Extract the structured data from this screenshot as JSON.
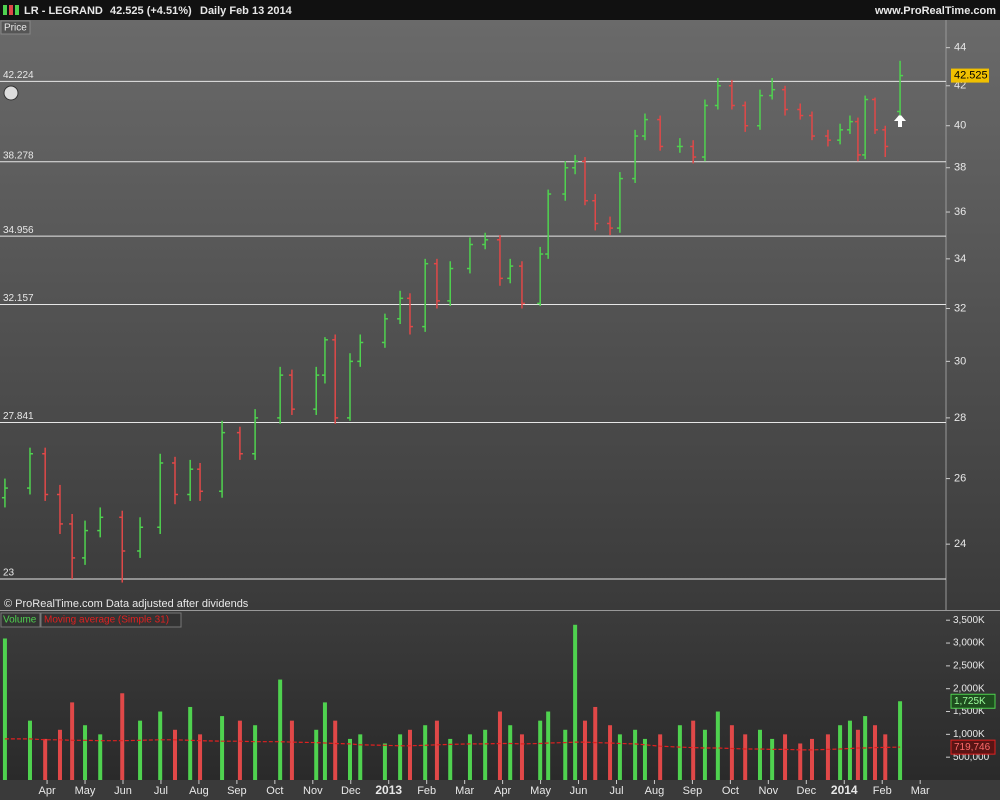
{
  "header": {
    "symbol": "LR - LEGRAND",
    "quote": "42.525 (+4.51%)",
    "period": "Daily  Feb 13 2014",
    "site": "www.ProRealTime.com"
  },
  "chart_data": [
    {
      "type": "ohlc",
      "title": "Price",
      "annotation": "© ProRealTime.com  Data adjusted after dividends",
      "log_scale": true,
      "up_color": "#4fd24f",
      "down_color": "#e04848",
      "x": [
        -1.11,
        -0.45,
        -0.05,
        0.34,
        0.66,
        1.0,
        1.4,
        1.98,
        2.45,
        2.98,
        3.37,
        3.77,
        4.03,
        4.61,
        5.08,
        5.48,
        6.14,
        6.45,
        7.09,
        7.32,
        7.59,
        7.98,
        8.25,
        8.9,
        9.3,
        9.56,
        9.96,
        10.27,
        10.62,
        11.14,
        11.54,
        11.93,
        12.2,
        12.51,
        12.99,
        13.2,
        13.65,
        13.91,
        14.17,
        14.44,
        14.83,
        15.09,
        15.49,
        15.75,
        16.15,
        16.67,
        17.02,
        17.33,
        17.67,
        18.04,
        18.39,
        18.78,
        19.1,
        19.44,
        19.84,
        20.15,
        20.57,
        20.89,
        21.15,
        21.36,
        21.55,
        21.81,
        22.08,
        22.47
      ],
      "open": [
        25.4,
        25.7,
        26.8,
        25.5,
        24.6,
        23.6,
        24.4,
        24.8,
        23.8,
        24.5,
        26.5,
        25.5,
        26.3,
        25.6,
        27.5,
        26.8,
        28,
        29.5,
        28.3,
        29.5,
        30.8,
        28,
        30,
        30.7,
        31.6,
        32.4,
        31.3,
        33.8,
        32.3,
        33.6,
        34.6,
        34.8,
        33.2,
        33.7,
        32.2,
        34.2,
        36.8,
        38,
        38.3,
        36.5,
        35.5,
        35.3,
        37.5,
        39.5,
        40.3,
        39,
        39,
        38.5,
        41,
        42,
        41,
        40,
        41.5,
        41.8,
        40.8,
        40.5,
        39.5,
        39.3,
        39.8,
        40.2,
        38.6,
        41.3,
        39.8,
        40.7
      ],
      "high": [
        26.0,
        27.0,
        27.0,
        25.8,
        24.9,
        24.7,
        25.1,
        25.0,
        24.8,
        26.8,
        26.7,
        26.6,
        26.5,
        27.9,
        27.7,
        28.3,
        29.8,
        29.7,
        29.8,
        30.9,
        31.0,
        30.3,
        31.0,
        31.8,
        32.7,
        32.6,
        34.0,
        34.0,
        33.9,
        34.9,
        35.1,
        35.0,
        34.0,
        33.9,
        34.5,
        37.0,
        38.3,
        38.6,
        38.5,
        36.8,
        35.8,
        37.8,
        39.8,
        40.6,
        40.5,
        39.4,
        39.3,
        41.3,
        42.4,
        42.3,
        41.2,
        41.8,
        42.4,
        42.0,
        41.1,
        40.7,
        39.8,
        40.1,
        40.5,
        40.4,
        41.5,
        41.4,
        40.0,
        43.3
      ],
      "low": [
        25.1,
        25.5,
        25.3,
        24.3,
        23.0,
        23.4,
        24.2,
        22.9,
        23.6,
        24.3,
        25.2,
        25.3,
        25.3,
        25.4,
        26.6,
        26.6,
        27.8,
        28.1,
        28.1,
        29.2,
        27.8,
        27.9,
        29.8,
        30.5,
        31.4,
        31.0,
        31.1,
        32.0,
        32.1,
        33.4,
        34.4,
        32.9,
        33.0,
        32.0,
        32.1,
        34.0,
        36.5,
        37.7,
        36.3,
        35.2,
        35.0,
        35.1,
        37.3,
        39.3,
        38.8,
        38.7,
        38.2,
        38.3,
        40.8,
        40.8,
        39.7,
        39.8,
        41.3,
        40.5,
        40.3,
        39.3,
        39.0,
        39.1,
        39.6,
        38.3,
        38.4,
        39.6,
        38.5,
        40.5
      ],
      "close": [
        25.7,
        26.8,
        25.5,
        24.6,
        23.6,
        24.4,
        24.8,
        23.8,
        24.5,
        26.5,
        25.5,
        26.3,
        25.6,
        27.5,
        26.8,
        28,
        29.5,
        28.3,
        29.5,
        30.8,
        28,
        30,
        30.7,
        31.6,
        32.4,
        31.3,
        33.8,
        32.3,
        33.6,
        34.6,
        34.8,
        33.2,
        33.7,
        32.2,
        34.2,
        36.8,
        38,
        38.3,
        36.5,
        35.5,
        35.3,
        37.5,
        39.5,
        40.3,
        39,
        39,
        38.5,
        41,
        42,
        41,
        40,
        41.5,
        41.8,
        40.8,
        40.5,
        39.5,
        39.3,
        39.8,
        40.2,
        38.6,
        41.3,
        39.8,
        39,
        42.525
      ],
      "levels": [
        42.224,
        38.278,
        34.956,
        32.157,
        27.841,
        23
      ],
      "xlim": [
        -1.24,
        23.68
      ],
      "ylim": [
        22.2,
        45.4
      ],
      "yticks": [
        24,
        26,
        28,
        30,
        32,
        34,
        36,
        38,
        40,
        42,
        44
      ]
    },
    {
      "type": "bar",
      "x": [
        -1.11,
        -0.45,
        -0.05,
        0.34,
        0.66,
        1.0,
        1.4,
        1.98,
        2.45,
        2.98,
        3.37,
        3.77,
        4.03,
        4.61,
        5.08,
        5.48,
        6.14,
        6.45,
        7.09,
        7.32,
        7.59,
        7.98,
        8.25,
        8.9,
        9.3,
        9.56,
        9.96,
        10.27,
        10.62,
        11.14,
        11.54,
        11.93,
        12.2,
        12.51,
        12.99,
        13.2,
        13.65,
        13.91,
        14.17,
        14.44,
        14.83,
        15.09,
        15.49,
        15.75,
        16.15,
        16.67,
        17.02,
        17.33,
        17.67,
        18.04,
        18.39,
        18.78,
        19.1,
        19.44,
        19.84,
        20.15,
        20.57,
        20.89,
        21.15,
        21.36,
        21.55,
        21.81,
        22.08,
        22.47
      ],
      "series": [
        {
          "name": "Volume",
          "color": "#4fd24f",
          "last_label": "1,725K",
          "values": [
            3100000,
            1300000,
            900000,
            1100000,
            1700000,
            1200000,
            1000000,
            1900000,
            1300000,
            1500000,
            1100000,
            1600000,
            1000000,
            1400000,
            1300000,
            1200000,
            2200000,
            1300000,
            1100000,
            1700000,
            1300000,
            900000,
            1000000,
            800000,
            1000000,
            1100000,
            1200000,
            1300000,
            900000,
            1000000,
            1100000,
            1500000,
            1200000,
            1000000,
            1300000,
            1500000,
            1100000,
            3400000,
            1300000,
            1600000,
            1200000,
            1000000,
            1100000,
            900000,
            1000000,
            1200000,
            1300000,
            1100000,
            1500000,
            1200000,
            1000000,
            1100000,
            900000,
            1000000,
            800000,
            900000,
            1000000,
            1200000,
            1300000,
            1100000,
            1400000,
            1200000,
            1000000,
            1725000
          ]
        },
        {
          "name": "Moving average (Simple 31)",
          "color": "#e02020",
          "last_label": "719,746",
          "values": [
            900000,
            900000,
            880000,
            880000,
            870000,
            870000,
            860000,
            860000,
            870000,
            880000,
            880000,
            870000,
            860000,
            850000,
            850000,
            840000,
            840000,
            830000,
            820000,
            810000,
            800000,
            790000,
            770000,
            760000,
            750000,
            750000,
            760000,
            770000,
            780000,
            790000,
            790000,
            800000,
            800000,
            790000,
            800000,
            810000,
            820000,
            830000,
            830000,
            820000,
            810000,
            800000,
            790000,
            770000,
            740000,
            720000,
            710000,
            700000,
            700000,
            690000,
            680000,
            680000,
            670000,
            670000,
            660000,
            660000,
            670000,
            680000,
            690000,
            700000,
            700000,
            710000,
            715000,
            719746
          ]
        }
      ],
      "xlim": [
        -1.24,
        23.68
      ],
      "ylim": [
        0,
        3680000
      ],
      "yticks": [
        {
          "value": 500000,
          "label": "500,000"
        },
        {
          "value": 1000000,
          "label": "1,000K"
        },
        {
          "value": 1500000,
          "label": "1,500K"
        },
        {
          "value": 2000000,
          "label": "2,000K"
        },
        {
          "value": 2500000,
          "label": "2,500K"
        },
        {
          "value": 3000000,
          "label": "3,000K"
        },
        {
          "value": 3500000,
          "label": "3,500K"
        }
      ],
      "xticks": [
        {
          "value": 0,
          "label": "Apr"
        },
        {
          "value": 1,
          "label": "May"
        },
        {
          "value": 2,
          "label": "Jun"
        },
        {
          "value": 3,
          "label": "Jul"
        },
        {
          "value": 4,
          "label": "Aug"
        },
        {
          "value": 5,
          "label": "Sep"
        },
        {
          "value": 6,
          "label": "Oct"
        },
        {
          "value": 7,
          "label": "Nov"
        },
        {
          "value": 8,
          "label": "Dec"
        },
        {
          "value": 9,
          "label": "2013"
        },
        {
          "value": 10,
          "label": "Feb"
        },
        {
          "value": 11,
          "label": "Mar"
        },
        {
          "value": 12,
          "label": "Apr"
        },
        {
          "value": 13,
          "label": "May"
        },
        {
          "value": 14,
          "label": "Jun"
        },
        {
          "value": 15,
          "label": "Jul"
        },
        {
          "value": 16,
          "label": "Aug"
        },
        {
          "value": 17,
          "label": "Sep"
        },
        {
          "value": 18,
          "label": "Oct"
        },
        {
          "value": 19,
          "label": "Nov"
        },
        {
          "value": 20,
          "label": "Dec"
        },
        {
          "value": 21,
          "label": "2014"
        },
        {
          "value": 22,
          "label": "Feb"
        },
        {
          "value": 23,
          "label": "Mar"
        }
      ]
    }
  ]
}
